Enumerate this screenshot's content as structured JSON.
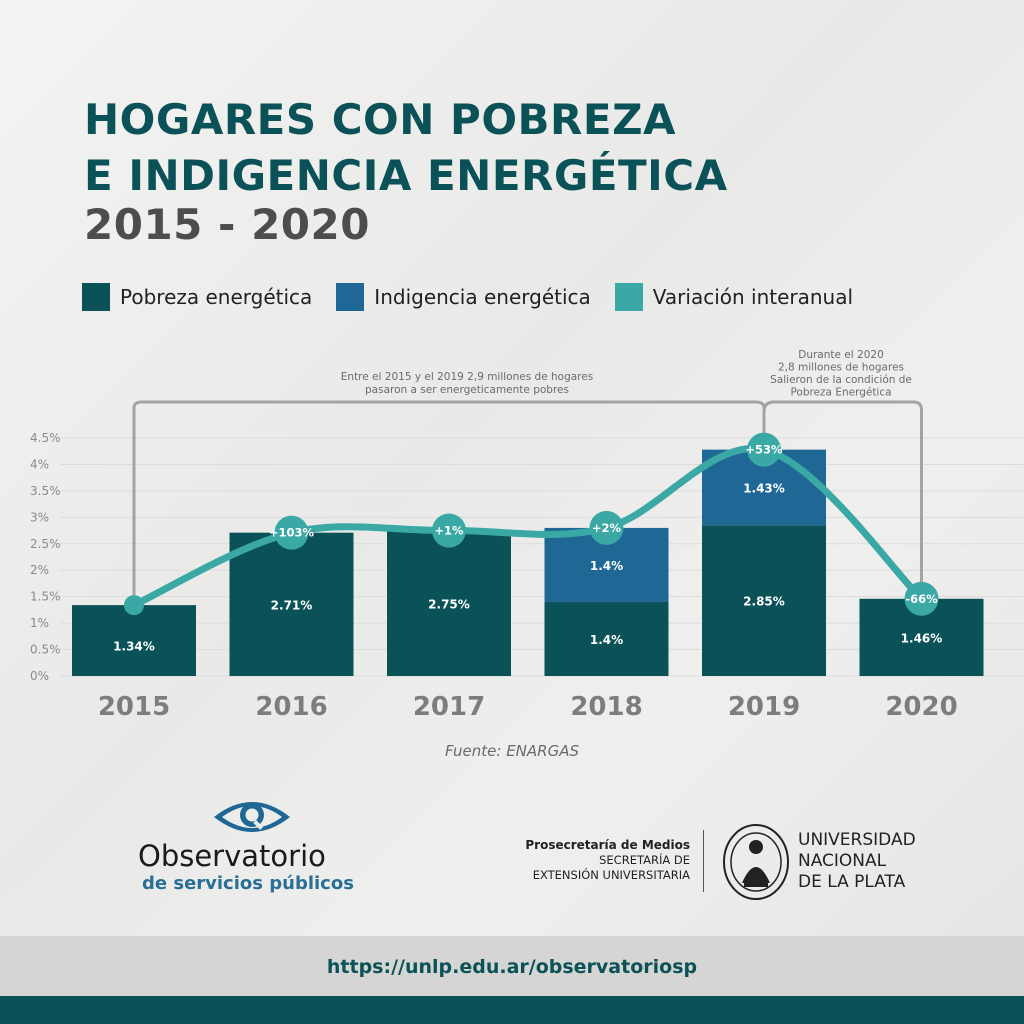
{
  "header": {
    "title_line1": "HOGARES CON POBREZA",
    "title_line2": "E INDIGENCIA ENERGÉTICA",
    "subtitle": "2015 - 2020"
  },
  "legend": [
    {
      "label": "Pobreza energética",
      "color": "#0b5258"
    },
    {
      "label": "Indigencia energética",
      "color": "#1f6794"
    },
    {
      "label": "Variación interanual",
      "color": "#3aa8a4"
    }
  ],
  "chart_data": {
    "type": "bar",
    "stacked": true,
    "categories": [
      "2015",
      "2016",
      "2017",
      "2018",
      "2019",
      "2020"
    ],
    "series": [
      {
        "name": "Pobreza energética",
        "color": "#0b5258",
        "values": [
          1.34,
          2.71,
          2.75,
          1.4,
          2.85,
          1.46
        ],
        "labels": [
          "1.34%",
          "2.71%",
          "2.75%",
          "1.4%",
          "2.85%",
          "1.46%"
        ]
      },
      {
        "name": "Indigencia energética",
        "color": "#1f6794",
        "values": [
          0,
          0,
          0,
          1.4,
          1.43,
          0
        ],
        "labels": [
          "",
          "",
          "",
          "1.4%",
          "1.43%",
          ""
        ]
      }
    ],
    "line": {
      "name": "Variación interanual",
      "color": "#3aa8a4",
      "values": [
        1.34,
        2.71,
        2.75,
        2.8,
        4.28,
        1.46
      ],
      "labels": [
        "",
        "+103%",
        "+1%",
        "+2%",
        "+53%",
        "-66%"
      ]
    },
    "yticks": [
      "0%",
      "0.5%",
      "1%",
      "1.5%",
      "2%",
      "2.5%",
      "3%",
      "3.5%",
      "4%",
      "4.5%"
    ],
    "ylim": [
      0,
      4.5
    ],
    "grid": true,
    "annotations": [
      {
        "text_line1": "Entre el 2015 y el 2019 2,9 millones de hogares",
        "text_line2": "pasaron a ser energeticamente pobres",
        "from": "2015",
        "to": "2019"
      },
      {
        "text_line1": "Durante el 2020",
        "text_line2": "2,8 millones de hogares",
        "text_line3": "Salieron de la condición de",
        "text_line4": "Pobreza Energética",
        "from": "2019",
        "to": "2020"
      }
    ]
  },
  "source": "Fuente: ENARGAS",
  "logo": {
    "name": "Observatorio",
    "tagline": "de servicios públicos"
  },
  "credits": {
    "line1": "Prosecretaría de Medios",
    "line2": "SECRETARÍA DE",
    "line3": "EXTENSIÓN UNIVERSITARIA"
  },
  "university": {
    "line1": "UNIVERSIDAD",
    "line2": "NACIONAL",
    "line3": "DE LA PLATA"
  },
  "footer": {
    "url": "https://unlp.edu.ar/observatoriosp"
  }
}
